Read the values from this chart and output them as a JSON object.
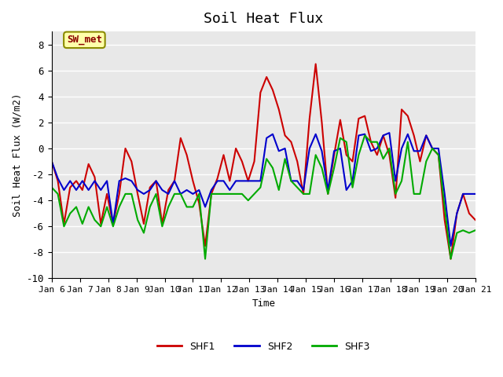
{
  "title": "Soil Heat Flux",
  "xlabel": "Time",
  "ylabel": "Soil Heat Flux (W/m2)",
  "ylim": [
    -10,
    9
  ],
  "yticks": [
    -10,
    -8,
    -6,
    -4,
    -2,
    0,
    2,
    4,
    6,
    8
  ],
  "x_labels": [
    "Jan 6",
    "Jan 7",
    "Jan 8",
    "Jan 9",
    "Jan 10",
    "Jan 11",
    "Jan 12",
    "Jan 13",
    "Jan 14",
    "Jan 15",
    "Jan 16",
    "Jan 17",
    "Jan 18",
    "Jan 19",
    "Jan 20",
    "Jan 21"
  ],
  "annotation_text": "SW_met",
  "shf1_color": "#cc0000",
  "shf2_color": "#0000cc",
  "shf3_color": "#00aa00",
  "bg_color": "#e8e8e8",
  "line_width": 1.5,
  "shf1": [
    -1.0,
    -2.5,
    -5.8,
    -3.0,
    -2.5,
    -3.2,
    -1.2,
    -2.2,
    -5.8,
    -3.5,
    -5.8,
    -3.5,
    0.0,
    -1.0,
    -3.5,
    -5.8,
    -3.0,
    -2.5,
    -5.8,
    -3.2,
    -2.5,
    0.8,
    -0.5,
    -2.5,
    -4.2,
    -7.5,
    -3.5,
    -2.3,
    -0.5,
    -2.5,
    -0.0,
    -1.0,
    -2.5,
    -1.0,
    4.3,
    5.5,
    4.5,
    3.0,
    1.0,
    0.5,
    -1.0,
    -3.5,
    2.3,
    6.5,
    2.0,
    -3.5,
    -0.5,
    2.2,
    -0.5,
    -1.0,
    2.3,
    2.5,
    0.5,
    -0.5,
    1.0,
    -0.5,
    -3.8,
    3.0,
    2.5,
    1.0,
    -1.0,
    1.0,
    0.0,
    -0.5,
    -5.5,
    -8.5,
    -5.0,
    -3.5,
    -5.0,
    -5.5
  ],
  "shf2": [
    -1.0,
    -2.3,
    -3.2,
    -2.5,
    -3.2,
    -2.5,
    -3.2,
    -2.5,
    -3.2,
    -2.5,
    -5.8,
    -2.5,
    -2.3,
    -2.5,
    -3.2,
    -3.5,
    -3.2,
    -2.5,
    -3.2,
    -3.5,
    -2.5,
    -3.5,
    -3.2,
    -3.5,
    -3.2,
    -4.5,
    -3.2,
    -2.5,
    -2.5,
    -3.2,
    -2.5,
    -2.5,
    -2.5,
    -2.5,
    -2.5,
    0.8,
    1.1,
    -0.2,
    0.0,
    -2.5,
    -2.5,
    -3.2,
    0.0,
    1.1,
    -0.2,
    -3.2,
    -0.2,
    0.0,
    -3.2,
    -2.5,
    1.0,
    1.1,
    -0.2,
    0.0,
    1.0,
    1.2,
    -2.5,
    0.0,
    1.1,
    -0.2,
    -0.2,
    1.0,
    0.0,
    0.0,
    -3.5,
    -7.5,
    -5.0,
    -3.5,
    -3.5,
    -3.5
  ],
  "shf3": [
    -3.0,
    -3.5,
    -6.0,
    -5.0,
    -4.5,
    -5.8,
    -4.5,
    -5.5,
    -6.0,
    -4.5,
    -6.0,
    -4.5,
    -3.5,
    -3.5,
    -5.5,
    -6.5,
    -4.5,
    -3.5,
    -6.0,
    -4.5,
    -3.5,
    -3.5,
    -4.5,
    -4.5,
    -3.5,
    -8.5,
    -3.5,
    -3.5,
    -3.5,
    -3.5,
    -3.5,
    -3.5,
    -4.0,
    -3.5,
    -3.0,
    -0.8,
    -1.5,
    -3.2,
    -0.8,
    -2.5,
    -3.0,
    -3.5,
    -3.5,
    -0.5,
    -1.5,
    -3.5,
    -1.5,
    0.8,
    0.5,
    -3.0,
    -0.5,
    1.0,
    0.5,
    0.5,
    -0.8,
    0.0,
    -3.5,
    -2.5,
    0.5,
    -3.5,
    -3.5,
    -1.0,
    0.0,
    -0.5,
    -4.5,
    -8.5,
    -6.5,
    -6.3,
    -6.5,
    -6.3
  ]
}
